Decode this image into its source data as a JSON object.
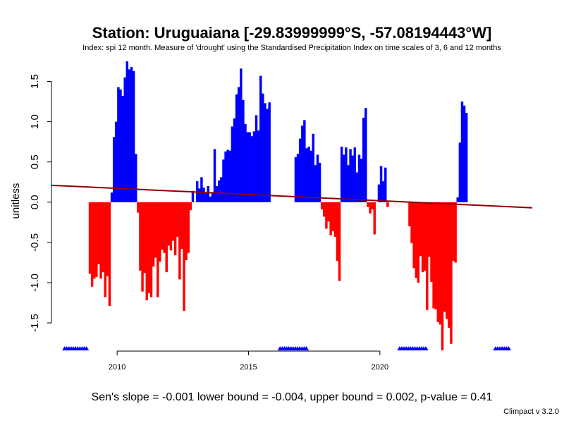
{
  "title": "Station: Uruguaiana [-29.83999999°S, -57.08194443°W]",
  "subtitle": "Index: spi 12 month. Measure of 'drought' using the Standardised Precipitation Index on time scales of 3, 6 and 12 months",
  "footer": "Sen's slope = -0.001   lower bound = -0.004,   upper bound = 0.002,   p-value = 0.41",
  "credit": "Climpact v 3.2.0",
  "colors": {
    "positive": "#0000ff",
    "negative": "#ff0000",
    "trend": "#8b0000",
    "missing": "#0000ff",
    "axis": "#000000"
  },
  "chart_data": {
    "type": "bar",
    "title": "Station: Uruguaiana [-29.83999999°S, -57.08194443°W]",
    "ylabel": "unitless",
    "xlabel": "",
    "x_start": 2008.0,
    "x_step": 0.08333,
    "xlim": [
      2007.5,
      2025.8
    ],
    "ylim": [
      -1.85,
      1.75
    ],
    "x_ticks": [
      2010,
      2015,
      2020
    ],
    "y_ticks": [
      "-1.5",
      "-1.0",
      "-0.5",
      "0.0",
      "0.5",
      "1.0",
      "1.5"
    ],
    "grid": false,
    "values": [
      null,
      null,
      null,
      null,
      null,
      null,
      null,
      null,
      null,
      null,
      null,
      -0.89,
      -1.05,
      -0.95,
      -0.93,
      -0.77,
      -0.95,
      -0.87,
      -1.18,
      -0.92,
      -1.29,
      0.12,
      0.81,
      1.0,
      1.43,
      1.4,
      1.32,
      1.55,
      1.75,
      1.65,
      1.68,
      1.63,
      0.6,
      -0.13,
      -0.85,
      -1.11,
      -0.88,
      -1.22,
      -1.13,
      -1.18,
      -0.8,
      -0.69,
      -1.18,
      -0.74,
      -0.59,
      -0.63,
      -0.87,
      -0.54,
      -0.6,
      -0.48,
      -0.66,
      -0.43,
      -0.96,
      -0.58,
      -1.35,
      -0.72,
      -0.63,
      -0.1,
      0.14,
      null,
      0.26,
      0.17,
      0.31,
      0.18,
      0.11,
      0.2,
      0.07,
      0.12,
      0.66,
      0.2,
      0.27,
      0.31,
      0.53,
      0.63,
      0.65,
      0.64,
      0.94,
      1.04,
      1.34,
      1.43,
      1.66,
      1.27,
      0.97,
      0.87,
      0.87,
      0.82,
      0.88,
      1.08,
      0.89,
      1.57,
      1.35,
      1.23,
      1.16,
      1.24,
      null,
      null,
      null,
      null,
      null,
      null,
      null,
      null,
      null,
      null,
      null,
      0.56,
      0.6,
      0.79,
      0.95,
      1.02,
      0.67,
      0.69,
      0.64,
      0.85,
      0.46,
      0.59,
      0.49,
      -0.09,
      -0.18,
      -0.33,
      -0.24,
      -0.41,
      -0.36,
      -0.43,
      -0.73,
      -0.98,
      0.69,
      0.59,
      0.68,
      0.46,
      0.66,
      0.58,
      0.68,
      0.37,
      0.59,
      0.54,
      1.05,
      1.17,
      -0.06,
      -0.14,
      -0.09,
      -0.4,
      null,
      0.22,
      0.45,
      0.26,
      0.43,
      -0.06,
      null,
      null,
      null,
      null,
      null,
      null,
      null,
      null,
      null,
      -0.3,
      -0.51,
      -0.82,
      -0.94,
      -1.0,
      -0.67,
      -0.87,
      -0.85,
      -1.34,
      -0.68,
      -0.99,
      -1.32,
      -1.33,
      -1.49,
      -1.52,
      -1.84,
      -1.36,
      -1.45,
      -1.56,
      -1.76,
      -0.73,
      -0.75,
      0.06,
      0.74,
      1.25,
      1.2,
      1.11
    ],
    "trend": {
      "x": [
        2007.5,
        2025.8
      ],
      "y": [
        0.21,
        -0.07
      ]
    },
    "missing_markers": [
      {
        "from": 2008.0,
        "to": 2008.85
      },
      {
        "from": 2016.2,
        "to": 2017.25
      },
      {
        "from": 2020.75,
        "to": 2021.8
      },
      {
        "from": 2024.4,
        "to": 2024.9
      }
    ]
  }
}
